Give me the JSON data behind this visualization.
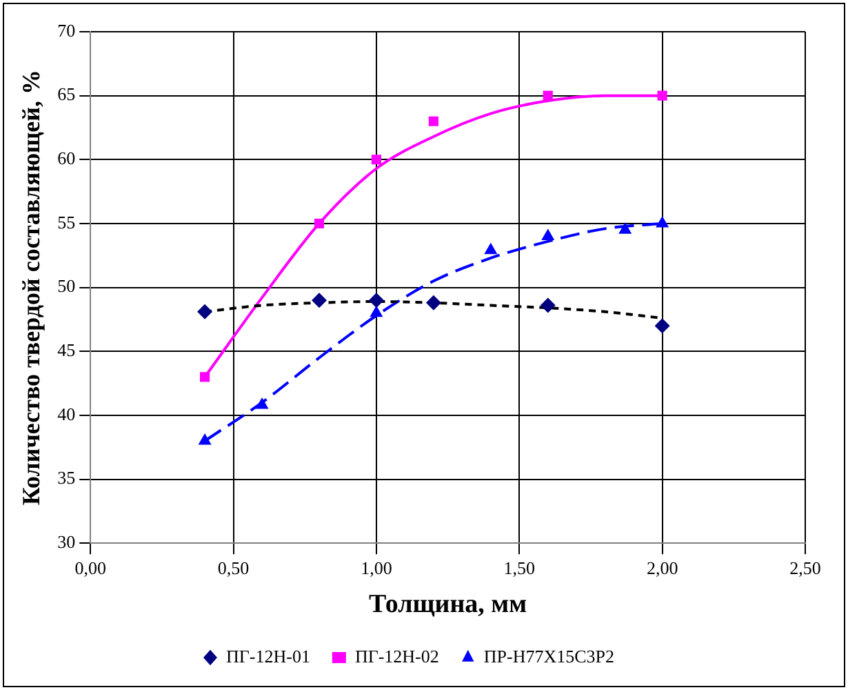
{
  "chart_data": {
    "type": "scatter",
    "xlabel": "Толщина, мм",
    "ylabel": "Количество твердой составляющей, %",
    "xlim": [
      0,
      2.5
    ],
    "ylim": [
      30,
      70
    ],
    "xticks": [
      {
        "value": 0,
        "label": "0,00"
      },
      {
        "value": 0.5,
        "label": "0,50"
      },
      {
        "value": 1,
        "label": "1,00"
      },
      {
        "value": 1.5,
        "label": "1,50"
      },
      {
        "value": 2,
        "label": "2,00"
      },
      {
        "value": 2.5,
        "label": "2,50"
      }
    ],
    "yticks": [
      30,
      35,
      40,
      45,
      50,
      55,
      60,
      65,
      70
    ],
    "grid": true,
    "legend": "bottom",
    "series": [
      {
        "name": "ПГ-12Н-01",
        "type": "scatter",
        "marker": "diamond",
        "color": "#000080",
        "x": [
          0.4,
          0.8,
          1.0,
          1.2,
          1.6,
          2.0
        ],
        "values": [
          48.1,
          49,
          49,
          48.8,
          48.6,
          47
        ]
      },
      {
        "name": "ПГ-12Н-02",
        "type": "scatter",
        "marker": "square",
        "color": "#ff00ff",
        "x": [
          0.4,
          0.8,
          1.0,
          1.2,
          1.6,
          2.0
        ],
        "values": [
          43,
          55,
          60,
          63,
          65,
          65
        ]
      },
      {
        "name": "ПР-Н77Х15С3Р2",
        "type": "scatter",
        "marker": "triangle",
        "color": "#0000ff",
        "x": [
          0.4,
          0.6,
          1.0,
          1.4,
          1.6,
          1.87,
          2.0
        ],
        "values": [
          38,
          40.8,
          48,
          52.9,
          54,
          54.5,
          55
        ]
      },
      {
        "type": "line",
        "marker": "none",
        "line_style": "dotted",
        "color": "#000000",
        "x": [
          0.4,
          0.6,
          0.8,
          1.0,
          1.2,
          1.4,
          1.6,
          1.8,
          2.0
        ],
        "values": [
          48.1,
          48.6,
          48.8,
          48.9,
          48.8,
          48.6,
          48.4,
          48.1,
          47.6
        ]
      },
      {
        "type": "line",
        "marker": "none",
        "line_style": "solid",
        "color": "#ff00ff",
        "x": [
          0.4,
          0.6,
          0.8,
          1.0,
          1.2,
          1.4,
          1.6,
          1.8,
          2.0
        ],
        "values": [
          43,
          49.2,
          55,
          59.3,
          61.8,
          63.6,
          64.6,
          65,
          65
        ]
      },
      {
        "type": "line",
        "marker": "none",
        "line_style": "dashed",
        "color": "#0000ff",
        "x": [
          0.4,
          0.6,
          0.8,
          1.0,
          1.2,
          1.4,
          1.6,
          1.8,
          2.0
        ],
        "values": [
          38,
          41,
          44.5,
          47.8,
          50.5,
          52.3,
          53.6,
          54.6,
          55
        ]
      }
    ]
  }
}
